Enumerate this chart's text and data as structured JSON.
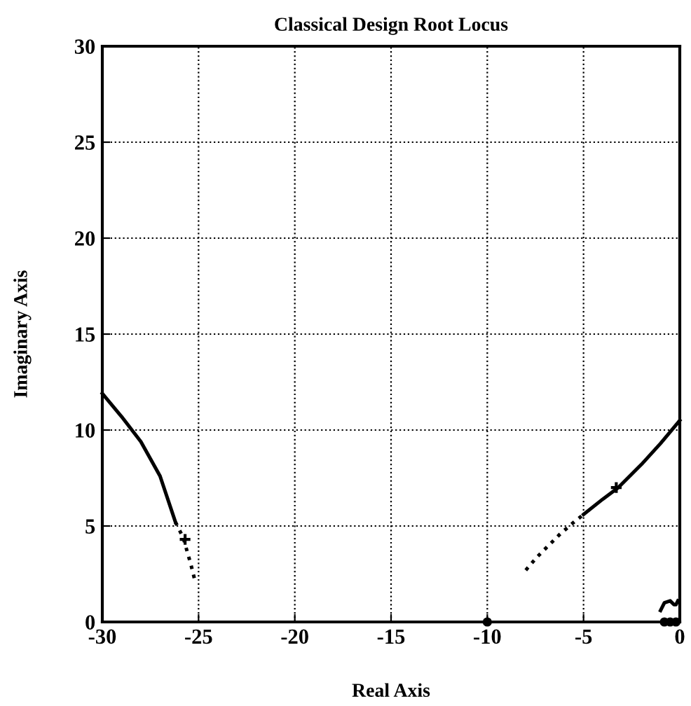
{
  "chart_data": {
    "type": "line",
    "title": "Classical Design Root Locus",
    "xlabel": "Real Axis",
    "ylabel": "Imaginary Axis",
    "xlim": [
      -30,
      0
    ],
    "ylim": [
      0,
      30
    ],
    "xticks": [
      -30,
      -25,
      -20,
      -15,
      -10,
      -5,
      0
    ],
    "yticks": [
      0,
      5,
      10,
      15,
      20,
      25,
      30
    ],
    "grid": true,
    "legend": false,
    "series": [
      {
        "line_style": "solid",
        "color": "#000000",
        "x": [
          -30,
          -29,
          -28,
          -27,
          -26.2
        ],
        "values": [
          11.9,
          10.7,
          9.4,
          7.6,
          5.2
        ]
      },
      {
        "line_style": "dotted",
        "color": "#000000",
        "x": [
          -26.2,
          -25.8,
          -25.6,
          -25.4,
          -25.2
        ],
        "values": [
          5.2,
          4.4,
          3.7,
          3.0,
          2.2
        ]
      },
      {
        "line_style": "dotted",
        "color": "#000000",
        "x": [
          -8,
          -7.4,
          -6.8,
          -6.2,
          -5.5,
          -5
        ],
        "values": [
          2.7,
          3.4,
          4.0,
          4.6,
          5.2,
          5.6
        ]
      },
      {
        "line_style": "solid",
        "color": "#000000",
        "x": [
          -5,
          -4,
          -3.2,
          -2,
          -1,
          0
        ],
        "values": [
          5.6,
          6.4,
          7.0,
          8.2,
          9.3,
          10.5
        ]
      },
      {
        "line_style": "solid",
        "color": "#000000",
        "x": [
          -1,
          -0.8,
          -0.5,
          -0.3,
          -0.2,
          -0.1
        ],
        "values": [
          0.6,
          1.0,
          1.1,
          0.9,
          0.9,
          1.1
        ]
      },
      {
        "type": "scatter",
        "marker": "cross",
        "color": "#000000",
        "x": [
          -25.7,
          -3.3
        ],
        "values": [
          4.3,
          7.0
        ]
      },
      {
        "type": "scatter",
        "marker": "circle",
        "color": "#000000",
        "x": [
          -10,
          -0.8,
          -0.5,
          -0.2
        ],
        "values": [
          0,
          0,
          0,
          0
        ]
      }
    ]
  }
}
